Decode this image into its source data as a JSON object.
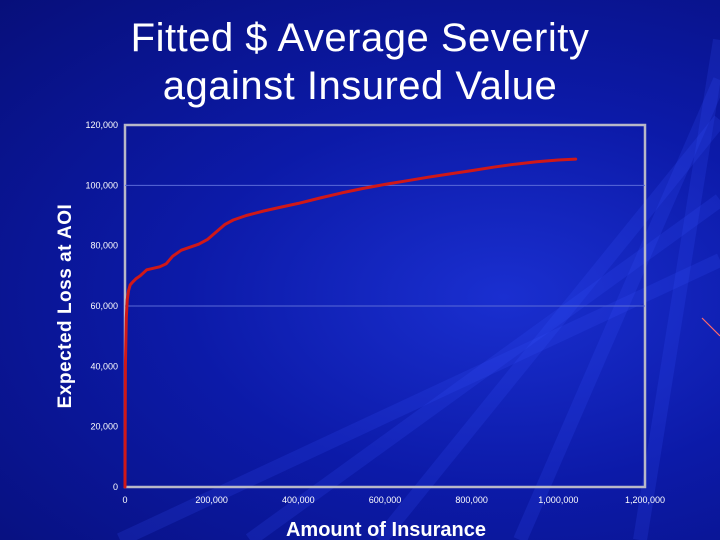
{
  "slide": {
    "title_line1": "Fitted $ Average Severity",
    "title_line2": "against Insured Value"
  },
  "colors": {
    "background": "#0c1aa8",
    "line": "#d01818",
    "gridline": "#5a6ad8",
    "text": "#ffffff"
  },
  "chart_data": {
    "type": "line",
    "title": "Fitted $ Average Severity against Insured Value",
    "xlabel": "Amount of Insurance",
    "ylabel": "Expected Loss at AOI",
    "xlim": [
      0,
      1200000
    ],
    "ylim": [
      0,
      120000
    ],
    "x_ticks": [
      0,
      200000,
      400000,
      600000,
      800000,
      1000000,
      1200000
    ],
    "x_tick_labels": [
      "0",
      "200,000",
      "400,000",
      "600,000",
      "800,000",
      "1,000,000",
      "1,200,000"
    ],
    "y_ticks": [
      0,
      20000,
      40000,
      60000,
      80000,
      100000,
      120000
    ],
    "y_tick_labels": [
      "0",
      "20,000",
      "40,000",
      "60,000",
      "80,000",
      "100,000",
      "120,000"
    ],
    "grid": "horizontal at 60,000 and 100,000",
    "legend": "none",
    "series": [
      {
        "x": [
          0,
          1000,
          3000,
          5000,
          8000,
          12000,
          18000,
          25000,
          35000,
          50000,
          65000,
          80000,
          95000,
          110000,
          130000,
          150000,
          170000,
          190000,
          210000,
          230000,
          250000,
          280000,
          320000,
          360000,
          400000,
          450000,
          500000,
          550000,
          600000,
          650000,
          700000,
          750000,
          800000,
          850000,
          900000,
          950000,
          1000000,
          1040000
        ],
        "y": [
          0,
          40000,
          56000,
          62000,
          65000,
          67000,
          68000,
          69000,
          70000,
          72000,
          72500,
          73000,
          74000,
          76500,
          78500,
          79500,
          80500,
          82000,
          84500,
          87000,
          88500,
          90000,
          91500,
          92800,
          94000,
          95800,
          97500,
          99000,
          100300,
          101500,
          102700,
          103800,
          104900,
          106000,
          107000,
          107800,
          108400,
          108700
        ]
      }
    ]
  }
}
